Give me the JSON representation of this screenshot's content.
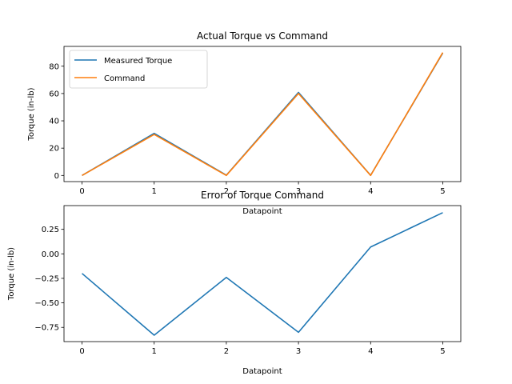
{
  "chart_data": [
    {
      "type": "line",
      "title": "Actual Torque vs Command",
      "xlabel": "Datapoint",
      "ylabel": "Torque (in-lb)",
      "x": [
        0,
        1,
        2,
        3,
        4,
        5
      ],
      "xlim": [
        -0.25,
        5.25
      ],
      "ylim": [
        -4.5,
        94.5
      ],
      "xticks": [
        0,
        1,
        2,
        3,
        4,
        5
      ],
      "yticks": [
        0,
        20,
        40,
        60,
        80
      ],
      "legend": "top-left",
      "grid": false,
      "series": [
        {
          "name": "Measured Torque",
          "color": "#1f77b4",
          "values": [
            0.0,
            30.8,
            0.2,
            60.8,
            0.1,
            89.6
          ]
        },
        {
          "name": "Command",
          "color": "#ff7f0e",
          "values": [
            0,
            30,
            0,
            60,
            0,
            90
          ]
        }
      ]
    },
    {
      "type": "line",
      "title": "Error of Torque Command",
      "xlabel": "Datapoint",
      "ylabel": "Torque (in-lb)",
      "x": [
        0,
        1,
        2,
        3,
        4,
        5
      ],
      "xlim": [
        -0.25,
        5.25
      ],
      "ylim": [
        -0.895,
        0.492
      ],
      "xticks": [
        0,
        1,
        2,
        3,
        4,
        5
      ],
      "yticks": [
        -0.75,
        -0.5,
        -0.25,
        0.0,
        0.25
      ],
      "ytick_labels": [
        "−0.75",
        "−0.50",
        "−0.25",
        "0.00",
        "0.25"
      ],
      "grid": false,
      "series": [
        {
          "name": "",
          "color": "#1f77b4",
          "values": [
            -0.2,
            -0.83,
            -0.24,
            -0.8,
            0.07,
            0.42
          ]
        }
      ]
    }
  ]
}
